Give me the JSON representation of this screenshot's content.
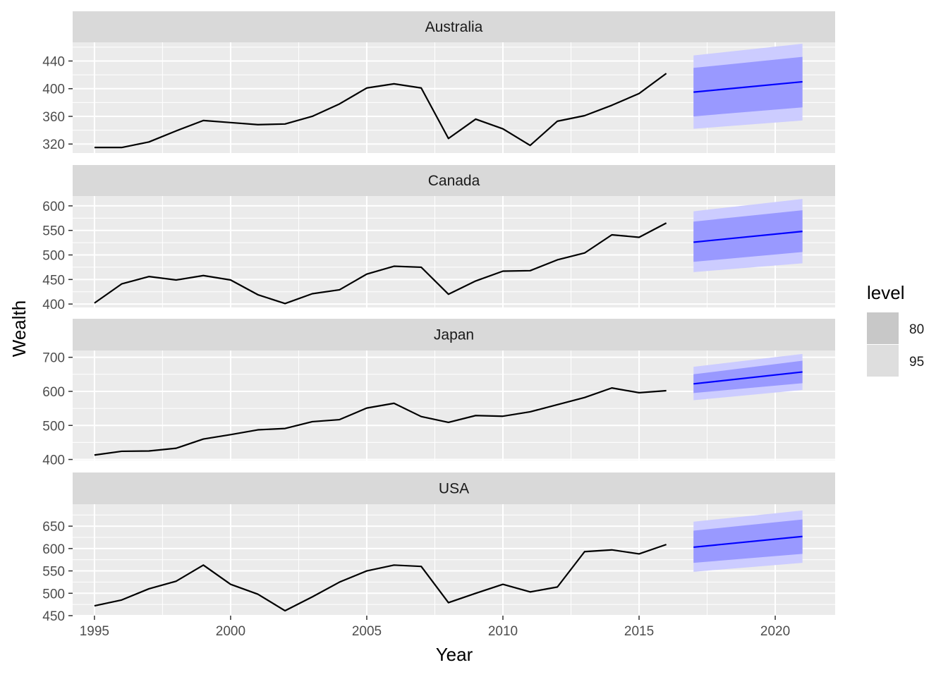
{
  "chart_data": {
    "type": "line",
    "xlabel": "Year",
    "ylabel": "Wealth",
    "x_ticks": [
      1995,
      2000,
      2005,
      2010,
      2015,
      2020
    ],
    "xlim": [
      1994.2,
      2022.2
    ],
    "grid": true,
    "legend": {
      "title": "level",
      "placement": "right",
      "entries": [
        {
          "label": "80",
          "color": "#c8c8c8"
        },
        {
          "label": "95",
          "color": "#dedede"
        }
      ]
    },
    "colors": {
      "history": "#000000",
      "forecast": "#0000ff",
      "band80": "#9999ff",
      "band95": "#ccccff",
      "panel_bg": "#ebebeb",
      "strip_bg": "#d9d9d9",
      "grid": "#ffffff"
    },
    "facets": [
      {
        "name": "Australia",
        "ylim": [
          307,
          467
        ],
        "y_ticks": [
          320,
          360,
          400,
          440
        ],
        "history": {
          "x": [
            1995,
            1996,
            1997,
            1998,
            1999,
            2000,
            2001,
            2002,
            2003,
            2004,
            2005,
            2006,
            2007,
            2008,
            2009,
            2010,
            2011,
            2012,
            2013,
            2014,
            2015,
            2016
          ],
          "y": [
            315,
            315,
            323,
            339,
            354,
            351,
            348,
            349,
            360,
            378,
            401,
            407,
            401,
            328,
            356,
            342,
            318,
            353,
            361,
            376,
            393,
            422
          ]
        },
        "forecast": {
          "x": [
            2017,
            2021
          ],
          "mean": [
            395,
            410
          ],
          "lower80": [
            360,
            373
          ],
          "upper80": [
            430,
            446
          ],
          "lower95": [
            342,
            354
          ],
          "upper95": [
            448,
            465
          ]
        }
      },
      {
        "name": "Canada",
        "ylim": [
          393,
          620
        ],
        "y_ticks": [
          400,
          450,
          500,
          550,
          600
        ],
        "history": {
          "x": [
            1995,
            1996,
            1997,
            1998,
            1999,
            2000,
            2001,
            2002,
            2003,
            2004,
            2005,
            2006,
            2007,
            2008,
            2009,
            2010,
            2011,
            2012,
            2013,
            2014,
            2015,
            2016
          ],
          "y": [
            402,
            441,
            456,
            449,
            458,
            449,
            419,
            401,
            421,
            429,
            461,
            477,
            475,
            420,
            447,
            467,
            468,
            490,
            504,
            541,
            536,
            565
          ]
        },
        "forecast": {
          "x": [
            2017,
            2021
          ],
          "mean": [
            526,
            548
          ],
          "lower80": [
            486,
            506
          ],
          "upper80": [
            568,
            591
          ],
          "lower95": [
            465,
            483
          ],
          "upper95": [
            589,
            614
          ]
        }
      },
      {
        "name": "Japan",
        "ylim": [
          397,
          720
        ],
        "y_ticks": [
          400,
          500,
          600,
          700
        ],
        "history": {
          "x": [
            1995,
            1996,
            1997,
            1998,
            1999,
            2000,
            2001,
            2002,
            2003,
            2004,
            2005,
            2006,
            2007,
            2008,
            2009,
            2010,
            2011,
            2012,
            2013,
            2014,
            2015,
            2016
          ],
          "y": [
            413,
            424,
            425,
            433,
            460,
            473,
            487,
            491,
            511,
            517,
            551,
            565,
            526,
            509,
            529,
            527,
            540,
            561,
            582,
            610,
            596,
            602
          ]
        },
        "forecast": {
          "x": [
            2017,
            2021
          ],
          "mean": [
            622,
            657
          ],
          "lower80": [
            595,
            624
          ],
          "upper80": [
            650,
            690
          ],
          "lower95": [
            574,
            604
          ],
          "upper95": [
            672,
            710
          ]
        }
      },
      {
        "name": "USA",
        "ylim": [
          450,
          699
        ],
        "y_ticks": [
          450,
          500,
          550,
          600,
          650
        ],
        "history": {
          "x": [
            1995,
            1996,
            1997,
            1998,
            1999,
            2000,
            2001,
            2002,
            2003,
            2004,
            2005,
            2006,
            2007,
            2008,
            2009,
            2010,
            2011,
            2012,
            2013,
            2014,
            2015,
            2016
          ],
          "y": [
            472,
            485,
            510,
            527,
            563,
            520,
            498,
            461,
            492,
            525,
            550,
            563,
            560,
            479,
            500,
            520,
            503,
            514,
            593,
            597,
            588,
            609
          ]
        },
        "forecast": {
          "x": [
            2017,
            2021
          ],
          "mean": [
            603,
            627
          ],
          "lower80": [
            568,
            588
          ],
          "upper80": [
            640,
            665
          ],
          "lower95": [
            548,
            568
          ],
          "upper95": [
            660,
            685
          ]
        }
      }
    ]
  }
}
